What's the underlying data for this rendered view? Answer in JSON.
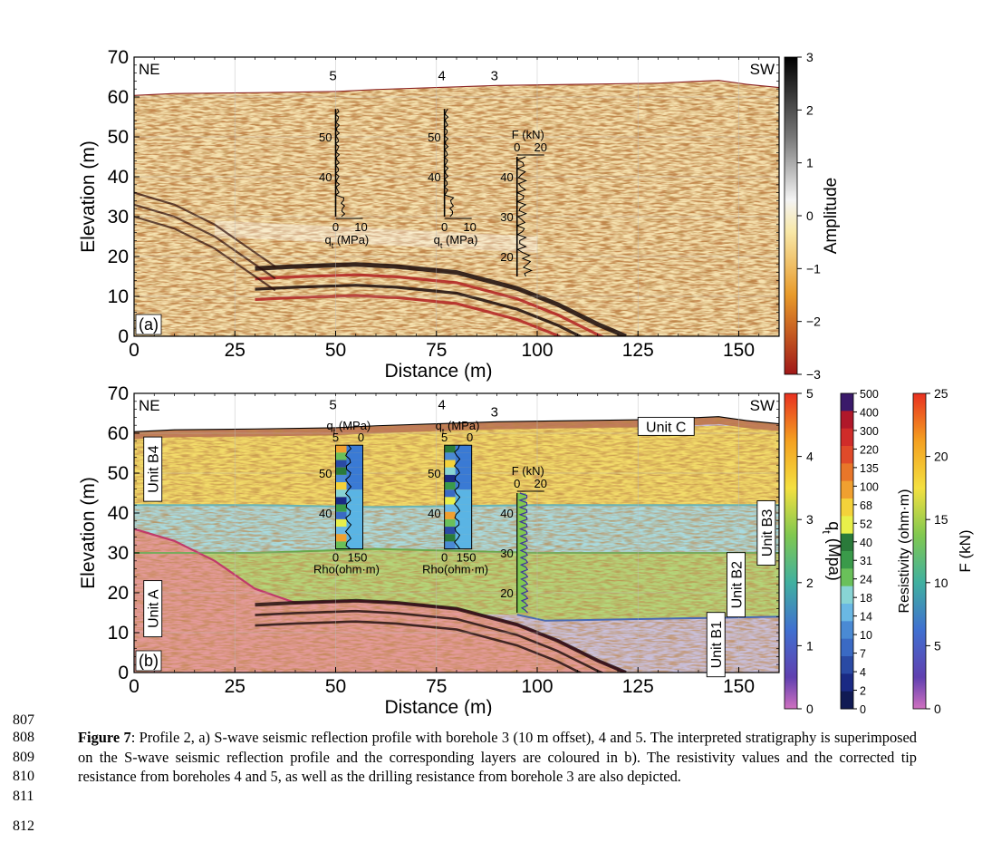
{
  "figure": {
    "panels": [
      {
        "id": "a",
        "panel_label": "(a)",
        "left_label": "NE",
        "right_label": "SW",
        "ylabel": "Elevation (m)",
        "xlabel": "Distance (m)",
        "x_ticks": [
          "0",
          "25",
          "50",
          "75",
          "100",
          "125",
          "150"
        ],
        "y_ticks": [
          "0",
          "10",
          "20",
          "30",
          "40",
          "50",
          "60",
          "70"
        ],
        "boreholes": [
          {
            "number": "5",
            "x": 50,
            "top": 57,
            "bottom": 30,
            "ticks": [
              "50",
              "40"
            ],
            "axis_ticks": [
              "0",
              "10"
            ],
            "axis_label": "q",
            "axis_sub": "t",
            "axis_unit": " (MPa)"
          },
          {
            "number": "4",
            "x": 77,
            "top": 57,
            "bottom": 30,
            "ticks": [
              "50",
              "40"
            ],
            "axis_ticks": [
              "0",
              "10"
            ],
            "axis_label": "q",
            "axis_sub": "t",
            "axis_unit": " (MPa)"
          },
          {
            "number": "3",
            "x": 95,
            "top": 45,
            "bottom": 15,
            "ticks": [
              "40",
              "30",
              "20"
            ],
            "axis_ticks": [
              "0",
              "20"
            ],
            "axis_label": "F (kN)",
            "axis_sub": "",
            "axis_unit": ""
          }
        ]
      },
      {
        "id": "b",
        "panel_label": "(b)",
        "left_label": "NE",
        "right_label": "SW",
        "ylabel": "Elevation (m)",
        "xlabel": "Distance (m)",
        "x_ticks": [
          "0",
          "25",
          "50",
          "75",
          "100",
          "125",
          "150"
        ],
        "y_ticks": [
          "0",
          "10",
          "20",
          "30",
          "40",
          "50",
          "60",
          "70"
        ],
        "units": [
          "Unit C",
          "Unit B4",
          "Unit B3",
          "Unit B2",
          "Unit B1",
          "Unit A"
        ],
        "boreholes": [
          {
            "number": "5",
            "x": 50,
            "top_ticks": [
              "5",
              "0"
            ],
            "top_label": "q",
            "top_sub": "t",
            "top_unit": " (MPa)",
            "bottom_ticks": [
              "0",
              "150"
            ],
            "bottom_label": "Rho(ohm·m)",
            "ticks": [
              "50",
              "40"
            ]
          },
          {
            "number": "4",
            "x": 77,
            "top_ticks": [
              "5",
              "0"
            ],
            "top_label": "q",
            "top_sub": "t",
            "top_unit": " (MPa)",
            "bottom_ticks": [
              "0",
              "150"
            ],
            "bottom_label": "Rho(ohm·m)",
            "ticks": [
              "50",
              "40"
            ]
          },
          {
            "number": "3",
            "x": 95,
            "top_ticks": [
              "0",
              "20"
            ],
            "top_label": "F (kN)",
            "ticks": [
              "40",
              "30",
              "20"
            ]
          }
        ]
      }
    ],
    "colorbars": {
      "amplitude": {
        "label": "Amplitude",
        "ticks": [
          "3",
          "2",
          "1",
          "0",
          "−1",
          "−2",
          "−3"
        ]
      },
      "qt": {
        "label": "q",
        "label_sub": "t",
        "label_unit": " (Mpa)",
        "ticks": [
          "5",
          "4",
          "3",
          "2",
          "1",
          "0"
        ]
      },
      "resistivity": {
        "label": "Resistivity (ohm·m)",
        "ticks": [
          "500",
          "400",
          "300",
          "220",
          "135",
          "100",
          "68",
          "52",
          "40",
          "31",
          "24",
          "18",
          "14",
          "10",
          "7",
          "4",
          "2",
          "0"
        ],
        "colors": [
          "#3a1a6a",
          "#b0182a",
          "#d02c2a",
          "#e04a2a",
          "#e8762a",
          "#f0a030",
          "#f4d23a",
          "#e8f04a",
          "#2a7a3a",
          "#3a9a4a",
          "#6ac05a",
          "#88d4d4",
          "#6ab8e4",
          "#4a8ad4",
          "#3a6ac4",
          "#2a4aa4",
          "#1a2a84",
          "#101a54"
        ]
      },
      "force": {
        "label": "F (kN)",
        "ticks": [
          "25",
          "20",
          "15",
          "10",
          "5",
          "0"
        ]
      }
    }
  },
  "line_numbers": [
    "807",
    "808",
    "809",
    "810",
    "811",
    "812"
  ],
  "caption": {
    "label": "Figure 7",
    "text": ": Profile 2, a) S-wave seismic reflection profile with borehole 3 (10 m offset), 4 and 5. The interpreted stratigraphy is superimposed on the S-wave seismic reflection profile and the corresponding layers are coloured in b). The resistivity values and the corrected tip resistance from boreholes 4 and 5, as well as the drilling resistance from borehole 3 are also depicted."
  },
  "colors": {
    "surface_line": "#8a2020",
    "unit_c": "#c07a5a",
    "unit_b4": "#f3dc6a",
    "unit_b3": "#a8dbe0",
    "unit_b2": "#b4d67a",
    "unit_b1": "#c9c0dc",
    "unit_a": "#e49a9a"
  }
}
